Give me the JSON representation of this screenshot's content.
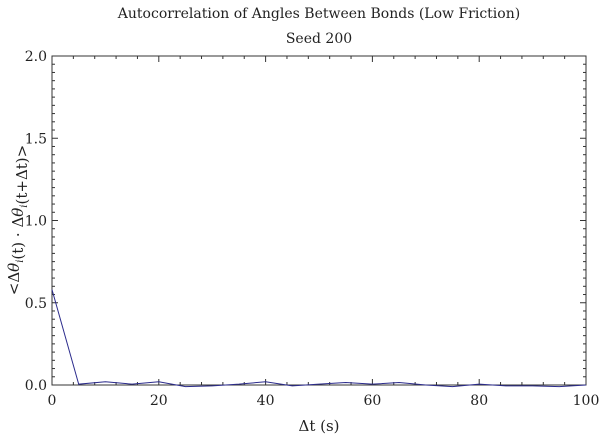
{
  "chart_data": {
    "type": "line",
    "title": "Autocorrelation of Angles Between Bonds (Low Friction)",
    "subtitle": "Seed 200",
    "xlabel": "Δt (s)",
    "ylabel": "<Δθi(t) · Δθi(t+Δt)>",
    "xlim": [
      0,
      100
    ],
    "ylim": [
      0,
      2.0
    ],
    "x_ticks": [
      "0",
      "20",
      "40",
      "60",
      "80",
      "100"
    ],
    "y_ticks": [
      "0.0",
      "0.5",
      "1.0",
      "1.5",
      "2.0"
    ],
    "grid": false,
    "series": [
      {
        "color": "#2b2b8c",
        "x": [
          0,
          5,
          10,
          15,
          20,
          25,
          30,
          35,
          40,
          45,
          50,
          55,
          60,
          65,
          70,
          75,
          80,
          85,
          90,
          95,
          100
        ],
        "y": [
          0.58,
          0.005,
          0.02,
          0.005,
          0.02,
          -0.01,
          -0.005,
          0.005,
          0.02,
          -0.005,
          0.005,
          0.015,
          0.005,
          0.015,
          0.0,
          -0.01,
          0.005,
          -0.005,
          -0.005,
          -0.01,
          0.0
        ]
      }
    ]
  }
}
